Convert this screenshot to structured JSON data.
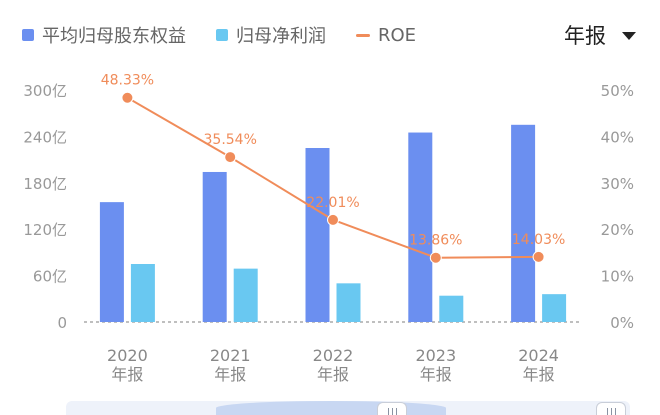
{
  "legend": {
    "equity_label": "平均归母股东权益",
    "net_profit_label": "归母净利润",
    "roe_label": "ROE"
  },
  "period_selector": {
    "value": "年报"
  },
  "colors": {
    "equity": "#6b8ff0",
    "net_profit": "#69c8f1",
    "roe": "#f08c5a",
    "axis_text": "#999999",
    "baseline": "#999999"
  },
  "chart_data": {
    "type": "bar",
    "categories": [
      "2020\n年报",
      "2021\n年报",
      "2022\n年报",
      "2023\n年报",
      "2024\n年报"
    ],
    "y_left": {
      "ticks": [
        "0",
        "60亿",
        "120亿",
        "180亿",
        "240亿",
        "300亿"
      ],
      "tick_values": [
        0,
        60,
        120,
        180,
        240,
        300
      ],
      "range": [
        0,
        300
      ]
    },
    "y_right": {
      "ticks": [
        "0%",
        "10%",
        "20%",
        "30%",
        "40%",
        "50%"
      ],
      "tick_values": [
        0,
        10,
        20,
        30,
        40,
        50
      ],
      "range": [
        0,
        50
      ]
    },
    "series": [
      {
        "name": "平均归母股东权益",
        "type": "bar",
        "axis": "left",
        "values": [
          155,
          194,
          225,
          245,
          255
        ]
      },
      {
        "name": "归母净利润",
        "type": "bar",
        "axis": "left",
        "values": [
          75,
          69,
          50,
          34,
          36
        ]
      },
      {
        "name": "ROE",
        "type": "line",
        "axis": "right",
        "values": [
          48.33,
          35.54,
          22.01,
          13.86,
          14.03
        ],
        "labels": [
          "48.33%",
          "35.54%",
          "22.01%",
          "13.86%",
          "14.03%"
        ]
      }
    ],
    "grid": false,
    "legend_position": "top-left"
  }
}
